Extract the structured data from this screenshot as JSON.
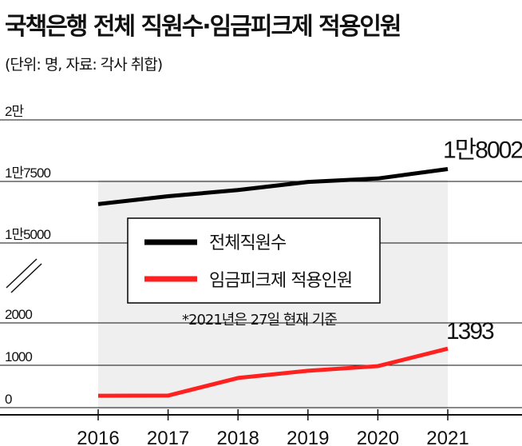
{
  "title": "국책은행 전체 직원수·임금피크제 적용인원",
  "subtitle": "(단위: 명, 자료: 각사 취합)",
  "note": "*2021년은 27일 현재 기준",
  "colors": {
    "total": "#000000",
    "peak": "#ff2020",
    "shade": "#efefef"
  },
  "chart_data": {
    "type": "line",
    "categories": [
      "2016",
      "2017",
      "2018",
      "2019",
      "2020",
      "2021"
    ],
    "series": [
      {
        "name": "전체직원수",
        "color": "#000000",
        "values": [
          16580,
          16900,
          17150,
          17480,
          17620,
          18002
        ]
      },
      {
        "name": "임금피크제 적용인원",
        "color": "#ff2020",
        "values": [
          280,
          285,
          700,
          870,
          980,
          1393
        ]
      }
    ],
    "end_labels": [
      "1만8002",
      "1393"
    ],
    "y_ticks_upper": [
      {
        "value": 20000,
        "label": "2만"
      },
      {
        "value": 17500,
        "label": "1만7500"
      },
      {
        "value": 15000,
        "label": "1만5000"
      }
    ],
    "y_ticks_lower": [
      {
        "value": 2000,
        "label": "2000"
      },
      {
        "value": 1000,
        "label": "1000"
      },
      {
        "value": 0,
        "label": "0"
      }
    ],
    "axis_break": true,
    "legend_placement": "center"
  }
}
